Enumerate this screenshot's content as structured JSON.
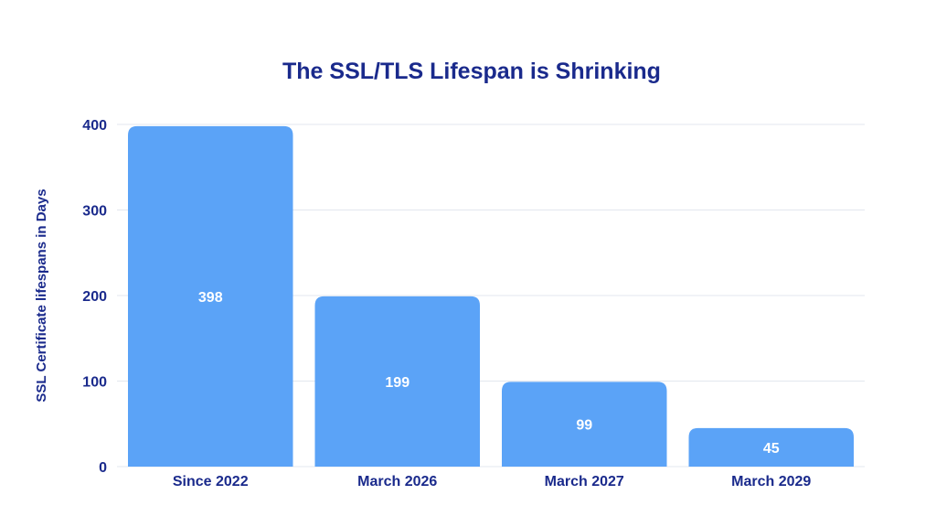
{
  "chart_data": {
    "type": "bar",
    "title": "The SSL/TLS Lifespan is Shrinking",
    "xlabel": "",
    "ylabel": "SSL Certificate lifespans in Days",
    "categories": [
      "Since 2022",
      "March 2026",
      "March 2027",
      "March 2029"
    ],
    "values": [
      398,
      199,
      99,
      45
    ],
    "data_labels": [
      "398",
      "199",
      "99",
      "45"
    ],
    "ylim": [
      0,
      400
    ],
    "yticks": [
      0,
      100,
      200,
      300,
      400
    ],
    "ytick_labels": [
      "0",
      "100",
      "200",
      "300",
      "400"
    ],
    "grid": true,
    "legend": "none"
  },
  "colors": {
    "bar": "#5ba3f7",
    "text": "#1a2a8c",
    "bar_label": "#ffffff",
    "grid": "#e3e7ef",
    "background": "#ffffff"
  }
}
